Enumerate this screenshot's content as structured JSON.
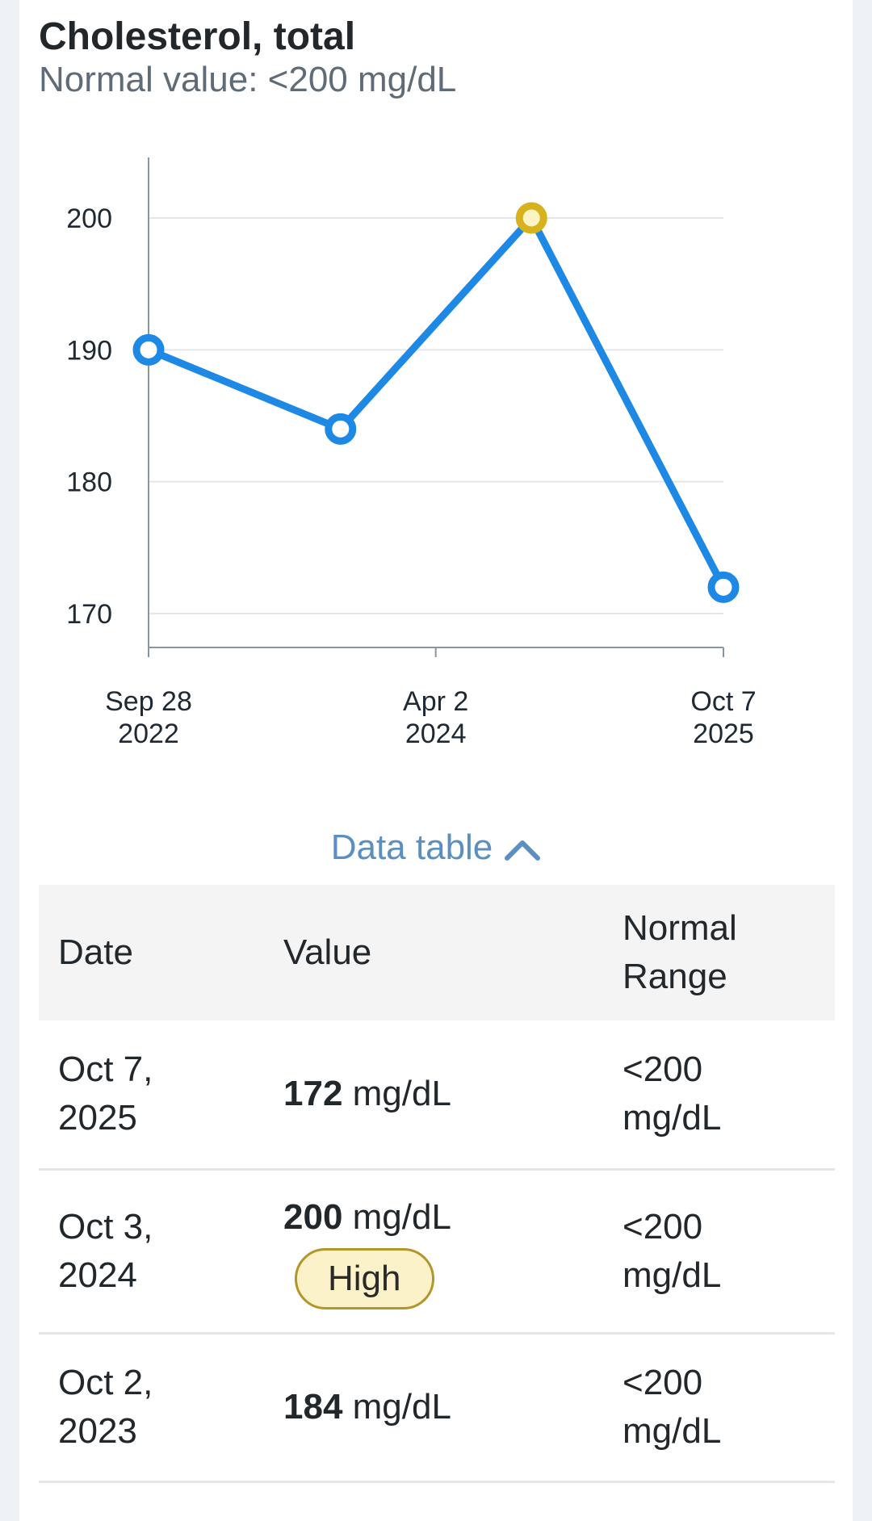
{
  "header": {
    "title": "Cholesterol, total",
    "normal_value": "Normal value: <200 mg/dL"
  },
  "chart_data": {
    "type": "line",
    "x": [
      "2022-09-28",
      "2023-10-02",
      "2024-10-03",
      "2025-10-07"
    ],
    "values": [
      190,
      184,
      200,
      172
    ],
    "point_status": [
      "normal",
      "normal",
      "high",
      "normal"
    ],
    "ylim": [
      170,
      200
    ],
    "yticks": [
      "170",
      "180",
      "190",
      "200"
    ],
    "xticks": [
      {
        "date": "2022-09-28",
        "line1": "Sep 28",
        "line2": "2022"
      },
      {
        "date": "2024-04-02",
        "line1": "Apr 2",
        "line2": "2024"
      },
      {
        "date": "2025-10-07",
        "line1": "Oct 7",
        "line2": "2025"
      }
    ],
    "grid": true,
    "colors": {
      "line": "#1e88e5",
      "high": "#d8b21c",
      "grid": "#e4e7ea",
      "axis": "#8a96a0"
    }
  },
  "toggle": {
    "label": "Data table",
    "icon": "chevron-up-icon"
  },
  "table": {
    "headers": {
      "date": "Date",
      "value": "Value",
      "range_line1": "Normal",
      "range_line2": "Range"
    },
    "rows": [
      {
        "date_line1": "Oct 7,",
        "date_line2": "2025",
        "value": "172",
        "unit": "mg/dL",
        "flag": "",
        "range_line1": "<200",
        "range_line2": "mg/dL"
      },
      {
        "date_line1": "Oct 3,",
        "date_line2": "2024",
        "value": "200",
        "unit": "mg/dL",
        "flag": "High",
        "range_line1": "<200",
        "range_line2": "mg/dL"
      },
      {
        "date_line1": "Oct 2,",
        "date_line2": "2023",
        "value": "184",
        "unit": "mg/dL",
        "flag": "",
        "range_line1": "<200",
        "range_line2": "mg/dL"
      }
    ]
  },
  "colors": {
    "badge_bg": "#fbf2c9",
    "badge_border": "#b3962a",
    "link": "#5b8fc0"
  }
}
